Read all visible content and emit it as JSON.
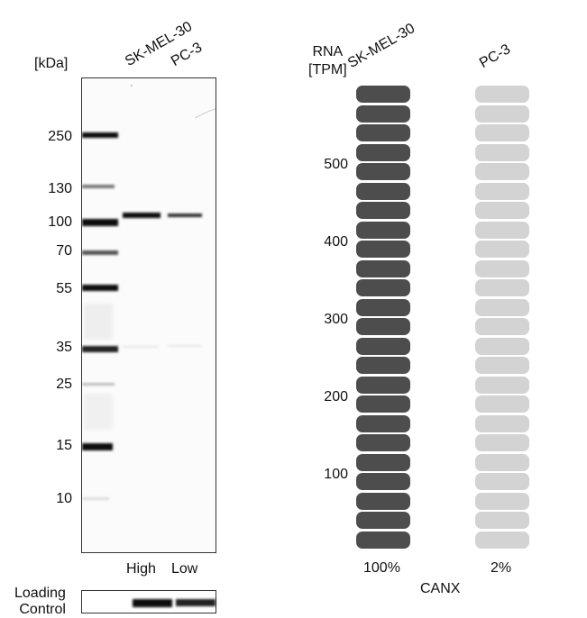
{
  "western_blot": {
    "unit_label": "[kDa]",
    "lanes": [
      "SK-MEL-30",
      "PC-3"
    ],
    "markers": [
      "250",
      "130",
      "100",
      "70",
      "55",
      "35",
      "25",
      "15",
      "10"
    ],
    "lane_levels": [
      "High",
      "Low"
    ],
    "loading_control_label_line1": "Loading",
    "loading_control_label_line2": "Control"
  },
  "rna_chart": {
    "unit_label_line1": "RNA",
    "unit_label_line2": "[TPM]",
    "y_ticks": [
      "100",
      "200",
      "300",
      "400",
      "500"
    ],
    "samples": [
      {
        "name": "SK-MEL-30",
        "percent_label": "100%",
        "color": "#4d4d4d",
        "fraction": 1.0
      },
      {
        "name": "PC-3",
        "percent_label": "2%",
        "color": "#d3d3d3",
        "fraction": 0.02
      }
    ],
    "gene": "CANX"
  },
  "colors": {
    "high_bar": "#4d4d4d",
    "low_bar": "#d3d3d3",
    "band": "#111111"
  }
}
